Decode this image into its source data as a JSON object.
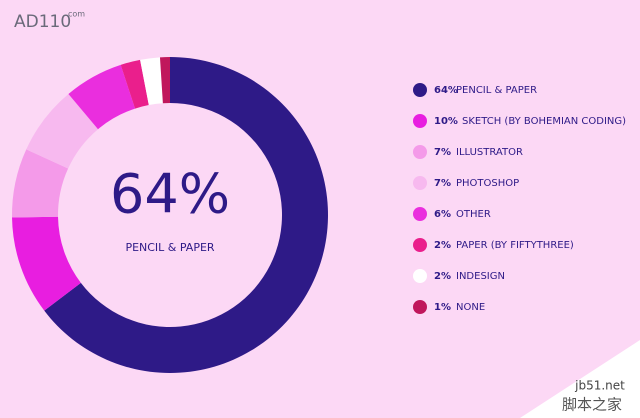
{
  "logo": {
    "main": "AD110",
    "sup": "com"
  },
  "watermark": {
    "site": "jb51.net",
    "name": "脚本之家"
  },
  "chart_data": {
    "type": "donut",
    "categories": [
      "PENCIL & PAPER",
      "SKETCH (BY BOHEMIAN CODING)",
      "ILLUSTRATOR",
      "PHOTOSHOP",
      "OTHER",
      "PAPER (BY FIFTYTHREE)",
      "INDESIGN",
      "NONE"
    ],
    "values": [
      64,
      10,
      7,
      7,
      6,
      2,
      2,
      1
    ],
    "value_labels": [
      "64%",
      "10%",
      "7%",
      "7%",
      "6%",
      "2%",
      "2%",
      "1%"
    ],
    "colors": [
      "#2e1a87",
      "#e81ee0",
      "#f49ae9",
      "#f7b9ef",
      "#ea2ede",
      "#ea1f8c",
      "#ffffff",
      "#c0175c"
    ]
  }
}
